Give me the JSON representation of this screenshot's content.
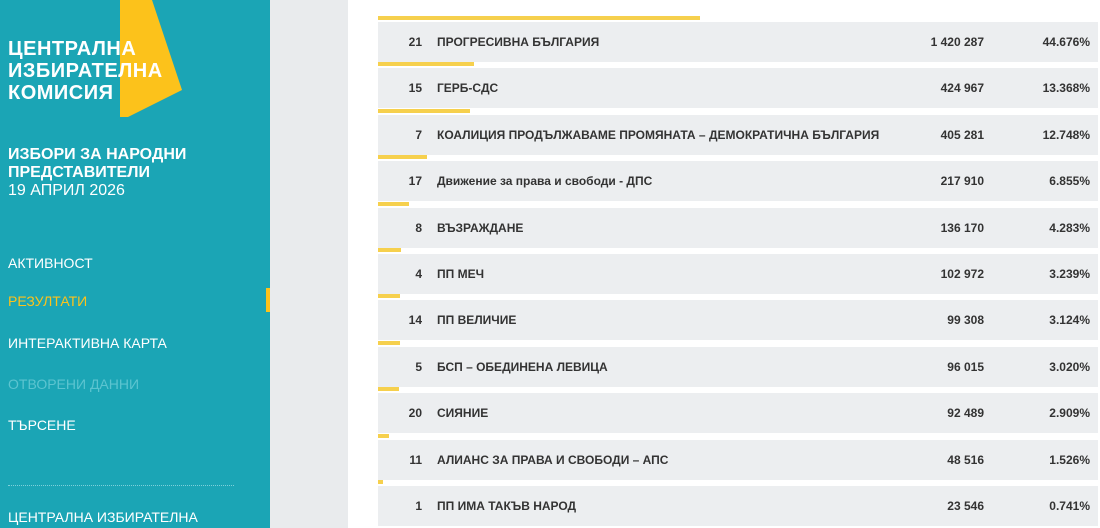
{
  "sidebar": {
    "logo": [
      "ЦЕНТРАЛНА",
      "ИЗБИРАТЕЛНА",
      "КОМИСИЯ"
    ],
    "election_title": [
      "ИЗБОРИ ЗА НАРОДНИ",
      "ПРЕДСТАВИТЕЛИ"
    ],
    "election_date": "19 АПРИЛ 2026",
    "nav": [
      "АКТИВНОСТ",
      "РЕЗУЛТАТИ",
      "ИНТЕРАКТИВНА КАРТА",
      "ОТВОРЕНИ ДАННИ",
      "ТЪРСЕНЕ"
    ],
    "footer": "ЦЕНТРАЛНА ИЗБИРАТЕЛНА"
  },
  "table": {
    "rows": [
      {
        "number": 21,
        "name": "ПРОГРЕСИВНА БЪЛГАРИЯ",
        "votes": "1 420 287",
        "share": 44.676,
        "share_label": "44.676%"
      },
      {
        "number": 15,
        "name": "ГЕРБ-СДС",
        "votes": "424 967",
        "share": 13.368,
        "share_label": "13.368%"
      },
      {
        "number": 7,
        "name": "КОАЛИЦИЯ ПРОДЪЛЖАВАМЕ ПРОМЯНАТА – ДЕМОКРАТИЧНА БЪЛГАРИЯ",
        "votes": "405 281",
        "share": 12.748,
        "share_label": "12.748%"
      },
      {
        "number": 17,
        "name": "Движение за права и свободи - ДПС",
        "votes": "217 910",
        "share": 6.855,
        "share_label": "6.855%"
      },
      {
        "number": 8,
        "name": "ВЪЗРАЖДАНЕ",
        "votes": "136 170",
        "share": 4.283,
        "share_label": "4.283%"
      },
      {
        "number": 4,
        "name": "ПП МЕЧ",
        "votes": "102 972",
        "share": 3.239,
        "share_label": "3.239%"
      },
      {
        "number": 14,
        "name": "ПП ВЕЛИЧИЕ",
        "votes": "99 308",
        "share": 3.124,
        "share_label": "3.124%"
      },
      {
        "number": 5,
        "name": "БСП – ОБЕДИНЕНА ЛЕВИЦА",
        "votes": "96 015",
        "share": 3.02,
        "share_label": "3.020%"
      },
      {
        "number": 20,
        "name": "СИЯНИЕ",
        "votes": "92 489",
        "share": 2.909,
        "share_label": "2.909%"
      },
      {
        "number": 11,
        "name": "АЛИАНС ЗА ПРАВА И СВОБОДИ – АПС",
        "votes": "48 516",
        "share": 1.526,
        "share_label": "1.526%"
      },
      {
        "number": 1,
        "name": "ПП ИМА ТАКЪВ НАРОД",
        "votes": "23 546",
        "share": 0.741,
        "share_label": "0.741%"
      }
    ]
  }
}
